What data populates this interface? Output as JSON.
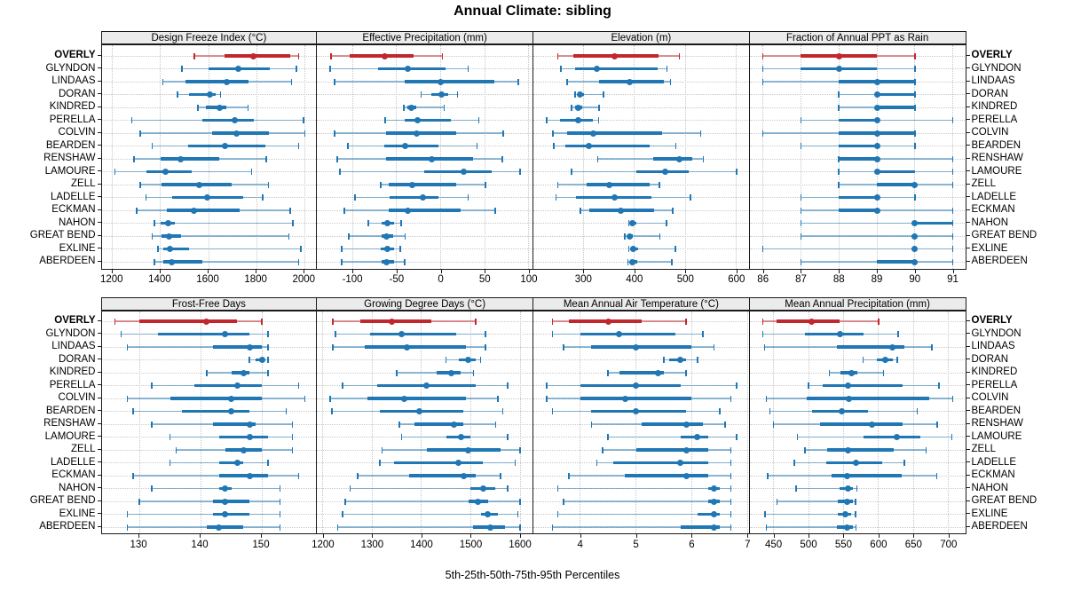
{
  "title": "Annual Climate: sibling",
  "caption": "5th-25th-50th-75th-95th Percentiles",
  "colors": {
    "highlight": "#c0282d",
    "highlight_light": "rgba(192,40,45,0.5)",
    "normal": "#2177b4",
    "normal_light": "rgba(33,119,180,0.5)",
    "strip_bg": "#ebebeb",
    "grid": "#c5c5c5"
  },
  "chart_data": {
    "type": "dotplot",
    "title": "Annual Climate: sibling",
    "caption": "5th-25th-50th-75th-95th Percentiles",
    "percentiles": [
      5,
      25,
      50,
      75,
      95
    ],
    "legend_position": "none",
    "grid": "dotted",
    "highlight_station": "OVERLY",
    "stations": [
      "OVERLY",
      "GLYNDON",
      "LINDAAS",
      "DORAN",
      "KINDRED",
      "PERELLA",
      "COLVIN",
      "BEARDEN",
      "RENSHAW",
      "LAMOURE",
      "ZELL",
      "LADELLE",
      "ECKMAN",
      "NAHON",
      "GREAT BEND",
      "EXLINE",
      "ABERDEEN"
    ],
    "panels": [
      {
        "title": "Design Freeze Index (°C)",
        "ticks": [
          1200,
          1400,
          1600,
          1800,
          2000
        ],
        "values": [
          [
            1540,
            1665,
            1785,
            1940,
            1975
          ],
          [
            1490,
            1600,
            1725,
            1855,
            1965
          ],
          [
            1410,
            1505,
            1675,
            1765,
            1945
          ],
          [
            1470,
            1520,
            1605,
            1630,
            1650
          ],
          [
            1555,
            1590,
            1645,
            1675,
            1765
          ],
          [
            1280,
            1575,
            1710,
            1790,
            1995
          ],
          [
            1315,
            1615,
            1715,
            1850,
            2000
          ],
          [
            1365,
            1515,
            1670,
            1835,
            1975
          ],
          [
            1290,
            1400,
            1485,
            1645,
            1840
          ],
          [
            1210,
            1340,
            1420,
            1530,
            1780
          ],
          [
            1315,
            1405,
            1560,
            1695,
            1850
          ],
          [
            1340,
            1450,
            1595,
            1745,
            1825
          ],
          [
            1300,
            1425,
            1540,
            1730,
            1940
          ],
          [
            1375,
            1400,
            1430,
            1460,
            1950
          ],
          [
            1365,
            1405,
            1435,
            1485,
            1935
          ],
          [
            1390,
            1410,
            1440,
            1520,
            1985
          ],
          [
            1375,
            1410,
            1445,
            1575,
            1975
          ]
        ]
      },
      {
        "title": "Effective Precipitation (mm)",
        "ticks": [
          -100,
          -50,
          0,
          50,
          100
        ],
        "values": [
          [
            -124,
            -103,
            -63,
            -31,
            2
          ],
          [
            -125,
            -71,
            -37,
            6,
            31
          ],
          [
            -120,
            -41,
            0,
            61,
            88
          ],
          [
            -22,
            -11,
            1,
            9,
            19
          ],
          [
            -42,
            -38,
            -33,
            -28,
            4
          ],
          [
            -63,
            -41,
            -26,
            12,
            43
          ],
          [
            -120,
            -62,
            -27,
            18,
            71
          ],
          [
            -105,
            -64,
            -40,
            -3,
            41
          ],
          [
            -117,
            -62,
            -10,
            37,
            70
          ],
          [
            -114,
            -19,
            26,
            58,
            90
          ],
          [
            -68,
            -59,
            -32,
            18,
            51
          ],
          [
            -97,
            -58,
            -20,
            -3,
            31
          ],
          [
            -109,
            -59,
            -37,
            23,
            62
          ],
          [
            -82,
            -67,
            -60,
            -53,
            -45
          ],
          [
            -104,
            -67,
            -61,
            -54,
            -40
          ],
          [
            -112,
            -68,
            -60,
            -53,
            -46
          ],
          [
            -112,
            -67,
            -61,
            -53,
            -41
          ]
        ]
      },
      {
        "title": "Elevation (m)",
        "ticks": [
          200,
          300,
          400,
          500,
          600
        ],
        "values": [
          [
            250,
            280,
            362,
            447,
            488
          ],
          [
            256,
            284,
            327,
            446,
            464
          ],
          [
            268,
            331,
            390,
            458,
            471
          ],
          [
            284,
            289,
            294,
            302,
            339
          ],
          [
            277,
            284,
            290,
            297,
            331
          ],
          [
            228,
            255,
            290,
            318,
            330
          ],
          [
            240,
            268,
            320,
            455,
            530
          ],
          [
            242,
            264,
            310,
            430,
            481
          ],
          [
            328,
            437,
            488,
            514,
            535
          ],
          [
            277,
            404,
            461,
            507,
            600
          ],
          [
            250,
            306,
            351,
            430,
            449
          ],
          [
            246,
            285,
            362,
            434,
            510
          ],
          [
            294,
            311,
            373,
            438,
            475
          ],
          [
            389,
            391,
            396,
            403,
            463
          ],
          [
            381,
            387,
            391,
            397,
            450
          ],
          [
            389,
            392,
            397,
            407,
            480
          ],
          [
            387,
            391,
            396,
            405,
            473
          ]
        ]
      },
      {
        "title": "Fraction of Annual PPT as Rain",
        "ticks": [
          86,
          87,
          88,
          89,
          90,
          91
        ],
        "values": [
          [
            86,
            87,
            88,
            89,
            90
          ],
          [
            86,
            87,
            88,
            89,
            90
          ],
          [
            86,
            88,
            89,
            90,
            90
          ],
          [
            88,
            89,
            89,
            90,
            90
          ],
          [
            88,
            89,
            89,
            90,
            90
          ],
          [
            87,
            88,
            89,
            89,
            91
          ],
          [
            86,
            88,
            89,
            90,
            90
          ],
          [
            87,
            88,
            89,
            89,
            90
          ],
          [
            88,
            88,
            89,
            89,
            91
          ],
          [
            88,
            89,
            89,
            90,
            91
          ],
          [
            88,
            89,
            90,
            90,
            91
          ],
          [
            87,
            88,
            89,
            89,
            90
          ],
          [
            87,
            88,
            89,
            89,
            91
          ],
          [
            87,
            90,
            90,
            91,
            91
          ],
          [
            87,
            90,
            90,
            90,
            91
          ],
          [
            86,
            90,
            90,
            90,
            91
          ],
          [
            87,
            89,
            90,
            90,
            91
          ]
        ]
      },
      {
        "title": "Frost-Free Days",
        "ticks": [
          130,
          140,
          150
        ],
        "values": [
          [
            126,
            130,
            141,
            146,
            150
          ],
          [
            127,
            133,
            144,
            148,
            151
          ],
          [
            128,
            142,
            148,
            150,
            151
          ],
          [
            148,
            149,
            150,
            150.5,
            151
          ],
          [
            141,
            145,
            147,
            148,
            151
          ],
          [
            132,
            139,
            146,
            150,
            156
          ],
          [
            128,
            135,
            145,
            150,
            157
          ],
          [
            129,
            137,
            145,
            148,
            154
          ],
          [
            132,
            142,
            148,
            149,
            155
          ],
          [
            135,
            143,
            148,
            151,
            155
          ],
          [
            136,
            144,
            147,
            150,
            155
          ],
          [
            135,
            143,
            146,
            147,
            151
          ],
          [
            129,
            143,
            148,
            151,
            156
          ],
          [
            132,
            143,
            144,
            145,
            153
          ],
          [
            130,
            142,
            144,
            148,
            153
          ],
          [
            128,
            142,
            144,
            148,
            153
          ],
          [
            128,
            141,
            143,
            147,
            153
          ]
        ]
      },
      {
        "title": "Growing Degree Days (°C)",
        "ticks": [
          1200,
          1300,
          1400,
          1500,
          1600
        ],
        "values": [
          [
            1220,
            1275,
            1340,
            1420,
            1510
          ],
          [
            1225,
            1295,
            1360,
            1470,
            1530
          ],
          [
            1220,
            1285,
            1370,
            1490,
            1530
          ],
          [
            1450,
            1475,
            1495,
            1510,
            1520
          ],
          [
            1350,
            1430,
            1460,
            1480,
            1505
          ],
          [
            1240,
            1310,
            1410,
            1510,
            1575
          ],
          [
            1215,
            1290,
            1365,
            1490,
            1555
          ],
          [
            1218,
            1315,
            1395,
            1485,
            1565
          ],
          [
            1355,
            1385,
            1465,
            1485,
            1550
          ],
          [
            1360,
            1450,
            1480,
            1500,
            1575
          ],
          [
            1320,
            1410,
            1495,
            1560,
            1600
          ],
          [
            1315,
            1345,
            1475,
            1525,
            1590
          ],
          [
            1270,
            1375,
            1485,
            1510,
            1560
          ],
          [
            1255,
            1500,
            1525,
            1550,
            1575
          ],
          [
            1245,
            1495,
            1515,
            1535,
            1600
          ],
          [
            1240,
            1520,
            1535,
            1555,
            1595
          ],
          [
            1230,
            1505,
            1540,
            1570,
            1600
          ]
        ]
      },
      {
        "title": "Mean Annual Air Temperature (°C)",
        "ticks": [
          4,
          5,
          6,
          7
        ],
        "values": [
          [
            3.5,
            3.8,
            4.5,
            5.1,
            5.9
          ],
          [
            3.5,
            4.0,
            4.7,
            5.7,
            6.2
          ],
          [
            3.7,
            4.2,
            5.0,
            6.0,
            6.4
          ],
          [
            5.5,
            5.6,
            5.8,
            5.9,
            6.1
          ],
          [
            4.5,
            4.7,
            5.4,
            5.5,
            5.9
          ],
          [
            3.4,
            4.0,
            5.0,
            5.8,
            6.8
          ],
          [
            3.4,
            4.0,
            4.8,
            6.0,
            6.7
          ],
          [
            3.5,
            4.2,
            5.0,
            5.9,
            6.5
          ],
          [
            4.2,
            5.1,
            5.9,
            6.2,
            6.6
          ],
          [
            4.5,
            5.8,
            6.1,
            6.3,
            6.8
          ],
          [
            4.4,
            5.0,
            5.9,
            6.3,
            6.7
          ],
          [
            4.3,
            4.6,
            5.8,
            6.3,
            6.7
          ],
          [
            3.8,
            4.8,
            5.9,
            6.3,
            6.7
          ],
          [
            3.6,
            6.3,
            6.4,
            6.5,
            6.7
          ],
          [
            3.7,
            6.3,
            6.4,
            6.5,
            6.7
          ],
          [
            3.6,
            6.1,
            6.4,
            6.5,
            6.7
          ],
          [
            3.5,
            5.8,
            6.4,
            6.5,
            6.7
          ]
        ]
      },
      {
        "title": "Mean Annual Precipitation (mm)",
        "ticks": [
          450,
          500,
          550,
          600,
          650,
          700
        ],
        "values": [
          [
            435,
            455,
            505,
            545,
            600
          ],
          [
            435,
            495,
            545,
            578,
            628
          ],
          [
            437,
            540,
            620,
            637,
            676
          ],
          [
            578,
            597,
            609,
            620,
            627
          ],
          [
            530,
            546,
            561,
            570,
            607
          ],
          [
            500,
            520,
            557,
            635,
            686
          ],
          [
            440,
            498,
            558,
            672,
            706
          ],
          [
            445,
            505,
            548,
            585,
            655
          ],
          [
            450,
            517,
            590,
            634,
            684
          ],
          [
            484,
            578,
            626,
            660,
            705
          ],
          [
            495,
            526,
            557,
            622,
            668
          ],
          [
            480,
            525,
            568,
            605,
            637
          ],
          [
            442,
            533,
            555,
            633,
            683
          ],
          [
            482,
            544,
            556,
            563,
            569
          ],
          [
            455,
            542,
            555,
            563,
            567
          ],
          [
            438,
            542,
            553,
            561,
            567
          ],
          [
            440,
            540,
            555,
            563,
            568
          ]
        ]
      }
    ]
  }
}
